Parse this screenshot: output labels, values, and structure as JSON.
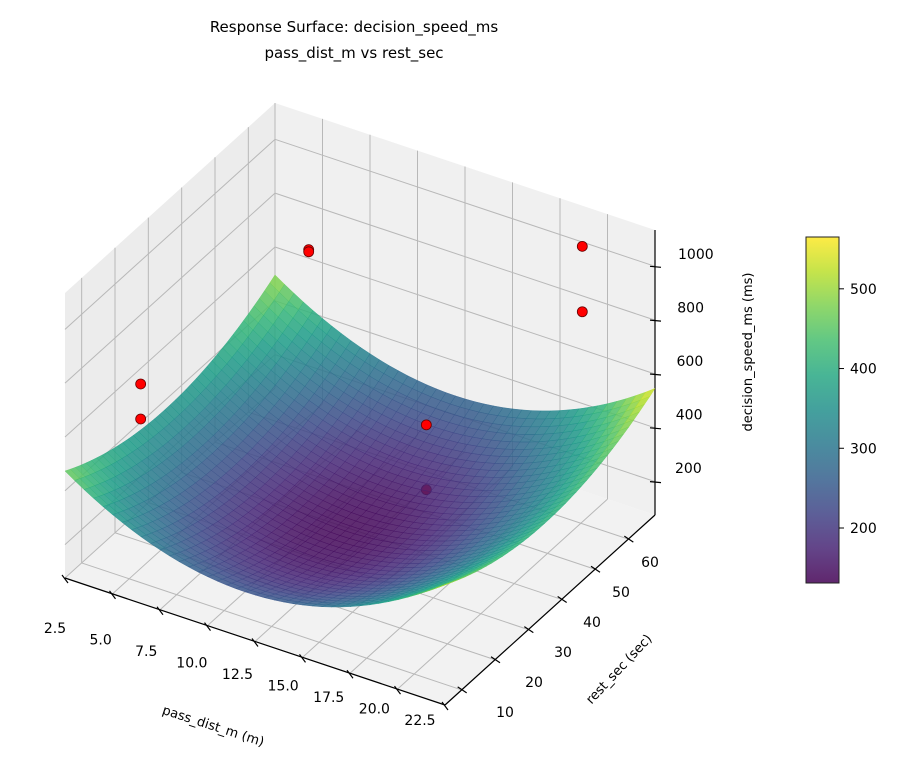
{
  "chart_data": {
    "type": "surface3d",
    "title": "Response Surface: decision_speed_ms",
    "subtitle": "pass_dist_m vs rest_sec",
    "xlabel": "pass_dist_m (m)",
    "ylabel": "rest_sec (sec)",
    "zlabel": "decision_speed_ms (ms)",
    "xlim": [
      2.5,
      22.5
    ],
    "ylim": [
      5,
      68
    ],
    "zlim": [
      76,
      1135
    ],
    "xticks": [
      "2.5",
      "5.0",
      "7.5",
      "10.0",
      "12.5",
      "15.0",
      "17.5",
      "20.0",
      "22.5"
    ],
    "yticks": [
      "10",
      "20",
      "30",
      "40",
      "50",
      "60"
    ],
    "zticks": [
      "200",
      "400",
      "600",
      "800",
      "1000"
    ],
    "colormap": "viridis",
    "surface_alpha": 0.8,
    "surface_model": {
      "form": "quadratic bowl",
      "min_value": 140,
      "min_at": {
        "x": 12,
        "y": 35
      },
      "x_coef": 2.5,
      "y_coef": 0.12
    },
    "colorbar": {
      "range": [
        131,
        565
      ],
      "ticks": [
        "200",
        "300",
        "400",
        "500"
      ]
    },
    "scatter_color": "#ff0000",
    "points": [
      {
        "x": 4.8,
        "y": 65,
        "z": 678
      },
      {
        "x": 4.8,
        "y": 65,
        "z": 670
      },
      {
        "x": 3.5,
        "y": 22,
        "z": 630
      },
      {
        "x": 3.5,
        "y": 22,
        "z": 500
      },
      {
        "x": 19.2,
        "y": 65,
        "z": 1030
      },
      {
        "x": 19.2,
        "y": 65,
        "z": 787
      },
      {
        "x": 14.5,
        "y": 45,
        "z": 480
      },
      {
        "x": 14.5,
        "y": 45,
        "z": 239
      }
    ],
    "grid": true
  }
}
